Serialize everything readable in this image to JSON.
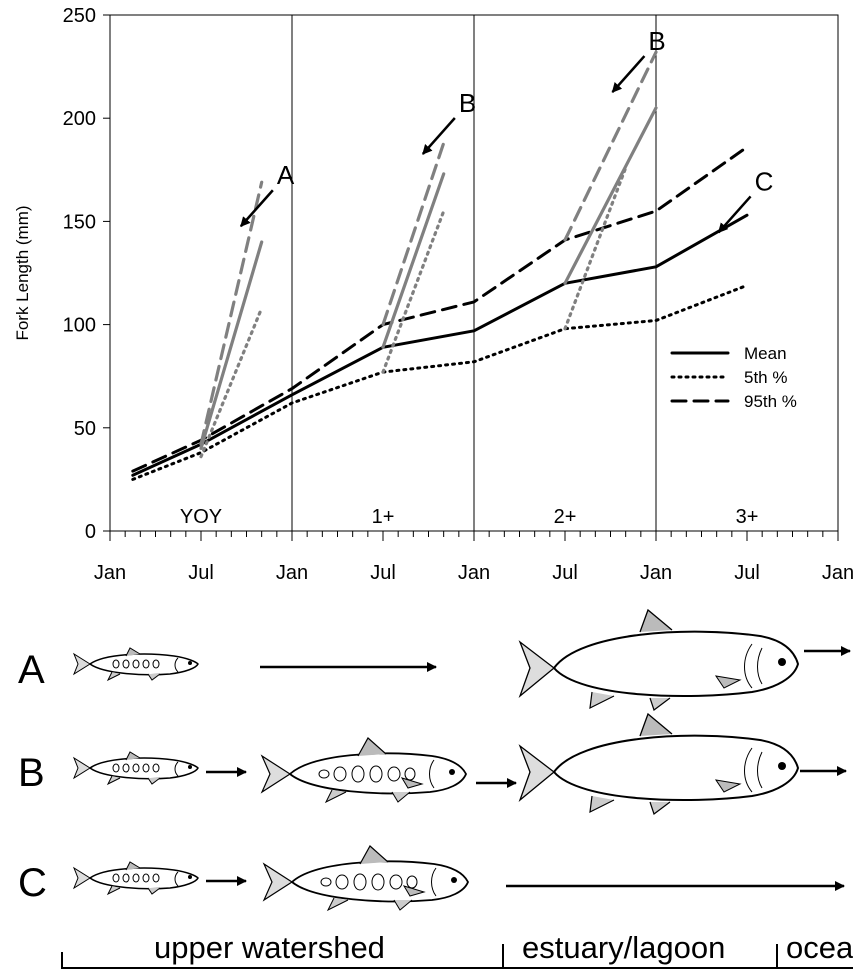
{
  "chart_data": {
    "type": "line",
    "ylabel": "Fork Length (mm)",
    "xlabel": "",
    "ylim": [
      0,
      250
    ],
    "yticks": [
      0,
      50,
      100,
      150,
      200,
      250
    ],
    "x_tick_labels": [
      "Jan",
      "Jul",
      "Jan",
      "Jul",
      "Jan",
      "Jul",
      "Jan",
      "Jul",
      "Jan"
    ],
    "x_unit": "months since first Jan",
    "xlim": [
      0,
      48
    ],
    "year_labels": [
      "YOY",
      "1+",
      "2+",
      "3+"
    ],
    "legend": {
      "position": "right",
      "entries": [
        {
          "name": "Mean",
          "style": "solid"
        },
        {
          "name": "5th %",
          "style": "dotted"
        },
        {
          "name": "95th %",
          "style": "dashed"
        }
      ]
    },
    "series": [
      {
        "name": "Mean",
        "color": "#000000",
        "style": "solid",
        "x": [
          1.5,
          6,
          12,
          18,
          24,
          30,
          36,
          42
        ],
        "y": [
          27,
          42,
          66,
          89,
          97,
          120,
          128,
          153
        ]
      },
      {
        "name": "5th %",
        "color": "#000000",
        "style": "dotted",
        "x": [
          1.5,
          6,
          12,
          18,
          24,
          30,
          36,
          42
        ],
        "y": [
          25,
          38,
          62,
          77,
          82,
          98,
          102,
          119
        ]
      },
      {
        "name": "95th %",
        "color": "#000000",
        "style": "dashed",
        "x": [
          1.5,
          6,
          12,
          18,
          24,
          30,
          36,
          42
        ],
        "y": [
          29,
          44,
          69,
          100,
          111,
          141,
          155,
          186
        ]
      },
      {
        "name": "",
        "color": "#808080",
        "style": "solid",
        "x": [
          6,
          10
        ],
        "y": [
          40,
          140
        ]
      },
      {
        "name": "",
        "color": "#808080",
        "style": "dotted",
        "x": [
          6,
          10
        ],
        "y": [
          36,
          108
        ]
      },
      {
        "name": "",
        "color": "#808080",
        "style": "dashed",
        "x": [
          6,
          10
        ],
        "y": [
          42,
          169
        ]
      },
      {
        "name": "",
        "color": "#808080",
        "style": "solid",
        "x": [
          18,
          22
        ],
        "y": [
          89,
          173
        ]
      },
      {
        "name": "",
        "color": "#808080",
        "style": "dotted",
        "x": [
          18,
          22
        ],
        "y": [
          77,
          155
        ]
      },
      {
        "name": "",
        "color": "#808080",
        "style": "dashed",
        "x": [
          18,
          22
        ],
        "y": [
          100,
          188
        ]
      },
      {
        "name": "",
        "color": "#808080",
        "style": "solid",
        "x": [
          30,
          36
        ],
        "y": [
          120,
          205
        ]
      },
      {
        "name": "",
        "color": "#808080",
        "style": "dotted",
        "x": [
          30,
          34
        ],
        "y": [
          98,
          176
        ]
      },
      {
        "name": "",
        "color": "#808080",
        "style": "dashed",
        "x": [
          30,
          36
        ],
        "y": [
          141,
          232
        ]
      }
    ],
    "annotations": [
      {
        "text": "A",
        "x": 11,
        "y": 168
      },
      {
        "text": "B",
        "x": 23,
        "y": 203
      },
      {
        "text": "B",
        "x": 35.5,
        "y": 233
      },
      {
        "text": "C",
        "x": 42.5,
        "y": 165
      }
    ]
  },
  "pathways": [
    {
      "label": "A",
      "stages": [
        "fry",
        "long-arrow",
        "adult",
        "arrow"
      ]
    },
    {
      "label": "B",
      "stages": [
        "fry",
        "arrow",
        "parr",
        "arrow",
        "adult",
        "arrow"
      ]
    },
    {
      "label": "C",
      "stages": [
        "fry",
        "arrow",
        "parr",
        "long-arrow"
      ]
    }
  ],
  "habitats": [
    "upper watershed",
    "estuary/lagoon",
    "ocea"
  ]
}
